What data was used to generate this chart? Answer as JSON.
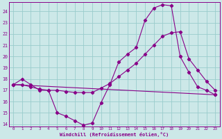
{
  "xlabel": "Windchill (Refroidissement éolien,°C)",
  "xlim": [
    -0.5,
    23.5
  ],
  "ylim": [
    13.8,
    24.8
  ],
  "yticks": [
    14,
    15,
    16,
    17,
    18,
    19,
    20,
    21,
    22,
    23,
    24
  ],
  "xticks": [
    0,
    1,
    2,
    3,
    4,
    5,
    6,
    7,
    8,
    9,
    10,
    11,
    12,
    13,
    14,
    15,
    16,
    17,
    18,
    19,
    20,
    21,
    22,
    23
  ],
  "bg_color": "#cce8e8",
  "line_color": "#880088",
  "grid_color": "#99cccc",
  "line1_x": [
    0,
    1,
    2,
    3,
    4,
    5,
    6,
    7,
    8,
    9,
    10,
    11,
    12,
    13,
    14,
    15,
    16,
    17,
    18,
    19,
    20,
    21,
    22,
    23
  ],
  "line1_y": [
    17.5,
    18.0,
    17.5,
    17.0,
    17.0,
    15.0,
    14.7,
    14.3,
    13.9,
    14.1,
    15.9,
    17.5,
    19.5,
    20.2,
    20.8,
    23.2,
    24.3,
    24.6,
    24.5,
    20.0,
    18.6,
    17.3,
    17.0,
    16.6
  ],
  "line2_x": [
    0,
    23
  ],
  "line2_y": [
    17.5,
    16.6
  ],
  "line3_x": [
    0,
    1,
    2,
    3,
    4,
    5,
    6,
    7,
    8,
    9,
    10,
    11,
    12,
    13,
    14,
    15,
    16,
    17,
    18,
    19,
    20,
    21,
    22,
    23
  ],
  "line3_y": [
    17.5,
    17.5,
    17.3,
    17.1,
    17.0,
    17.0,
    16.9,
    16.8,
    16.8,
    16.8,
    17.2,
    17.6,
    18.2,
    18.8,
    19.4,
    20.2,
    21.0,
    21.8,
    22.1,
    22.2,
    19.8,
    18.8,
    17.8,
    17.0
  ]
}
